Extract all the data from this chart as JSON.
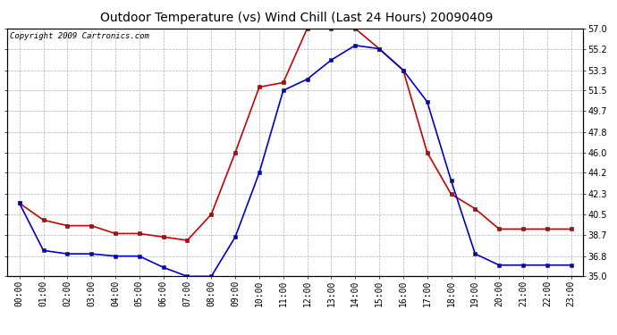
{
  "title": "Outdoor Temperature (vs) Wind Chill (Last 24 Hours) 20090409",
  "copyright": "Copyright 2009 Cartronics.com",
  "hours": [
    "00:00",
    "01:00",
    "02:00",
    "03:00",
    "04:00",
    "05:00",
    "06:00",
    "07:00",
    "08:00",
    "09:00",
    "10:00",
    "11:00",
    "12:00",
    "13:00",
    "14:00",
    "15:00",
    "16:00",
    "17:00",
    "18:00",
    "19:00",
    "20:00",
    "21:00",
    "22:00",
    "23:00"
  ],
  "temp": [
    41.5,
    40.0,
    39.5,
    39.5,
    38.8,
    38.8,
    38.5,
    38.2,
    40.5,
    46.0,
    51.8,
    52.2,
    57.0,
    57.0,
    57.0,
    55.2,
    53.3,
    46.0,
    42.3,
    41.0,
    39.2,
    39.2,
    39.2,
    39.2
  ],
  "wind_chill": [
    41.5,
    37.3,
    37.0,
    37.0,
    36.8,
    36.8,
    35.8,
    35.0,
    35.0,
    38.5,
    44.2,
    51.5,
    52.5,
    54.2,
    55.5,
    55.2,
    53.3,
    50.5,
    43.5,
    37.0,
    36.0,
    36.0,
    36.0,
    36.0
  ],
  "ylim": [
    35.0,
    57.0
  ],
  "yticks": [
    35.0,
    36.8,
    38.7,
    40.5,
    42.3,
    44.2,
    46.0,
    47.8,
    49.7,
    51.5,
    53.3,
    55.2,
    57.0
  ],
  "red_color": "#cc0000",
  "blue_color": "#0000cc",
  "bg_color": "#ffffff",
  "grid_color": "#b0b0b0",
  "title_fontsize": 10,
  "copyright_fontsize": 6.5,
  "axis_fontsize": 7
}
